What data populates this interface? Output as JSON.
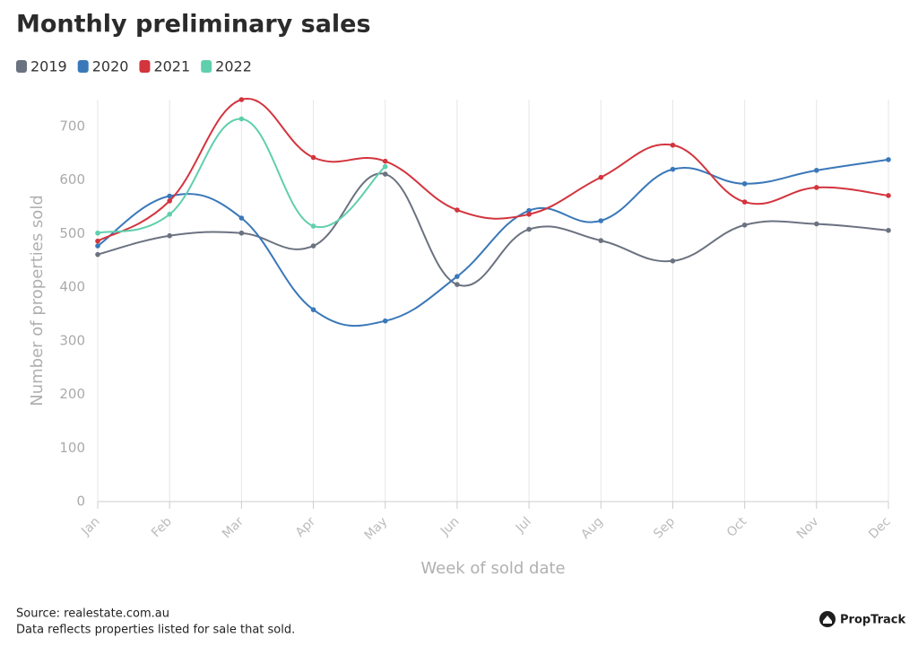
{
  "chart_data": {
    "type": "line",
    "title": "Monthly preliminary sales",
    "xlabel": "Week of sold date",
    "ylabel": "Number of properties sold",
    "categories": [
      "Jan",
      "Feb",
      "Mar",
      "Apr",
      "May",
      "Jun",
      "Jul",
      "Aug",
      "Sep",
      "Oct",
      "Nov",
      "Dec"
    ],
    "series": [
      {
        "name": "2019",
        "color": "#6b7280",
        "values": [
          461,
          496,
          501,
          477,
          611,
          405,
          508,
          487,
          449,
          516,
          518,
          506
        ]
      },
      {
        "name": "2020",
        "color": "#3a78b9",
        "values": [
          477,
          570,
          529,
          358,
          337,
          420,
          543,
          524,
          620,
          593,
          618,
          638
        ]
      },
      {
        "name": "2021",
        "color": "#d3343d",
        "values": [
          486,
          561,
          750,
          642,
          635,
          544,
          536,
          605,
          665,
          559,
          586,
          571
        ]
      },
      {
        "name": "2022",
        "color": "#5fcfad",
        "values": [
          501,
          536,
          714,
          514,
          625,
          null,
          null,
          null,
          null,
          null,
          null,
          null
        ]
      }
    ],
    "ylim": [
      0,
      750
    ],
    "yticks": [
      0,
      100,
      200,
      300,
      400,
      500,
      600,
      700
    ],
    "xgrid": true,
    "smooth": true,
    "legend": "top-left",
    "source": "Source: realestate.com.au",
    "note": "Data reflects properties listed for sale that sold.",
    "brand": "PropTrack"
  }
}
